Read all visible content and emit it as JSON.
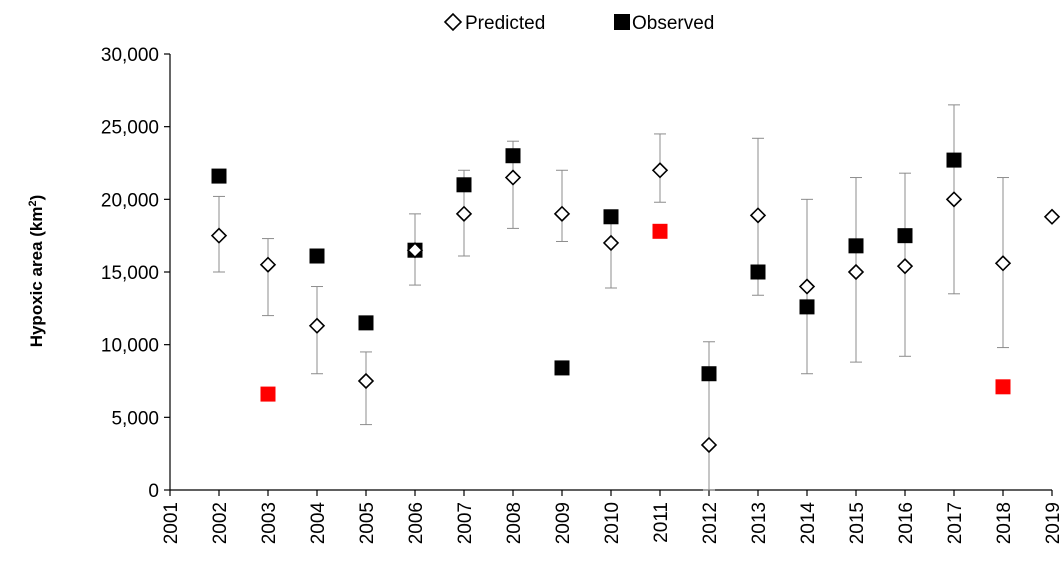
{
  "chart_data": {
    "type": "scatter",
    "title": "",
    "xlabel": "",
    "ylabel": "Hypoxic area (km",
    "ylabel_superscript": "2",
    "ylabel_suffix": ")",
    "ylim": [
      0,
      30000
    ],
    "y_ticks": [
      0,
      5000,
      10000,
      15000,
      20000,
      25000,
      30000
    ],
    "y_tick_labels": [
      "0",
      "5,000",
      "10,000",
      "15,000",
      "20,000",
      "25,000",
      "30,000"
    ],
    "xlim": [
      2001,
      2019
    ],
    "x_ticks": [
      2001,
      2002,
      2003,
      2004,
      2005,
      2006,
      2007,
      2008,
      2009,
      2010,
      2011,
      2012,
      2013,
      2014,
      2015,
      2016,
      2017,
      2018,
      2019
    ],
    "grid": false,
    "legend": {
      "placement": "top-center",
      "entries": [
        "Predicted",
        "Observed"
      ]
    },
    "colors": {
      "observed": "#000000",
      "observed_highlight": "#ff0000",
      "predicted_stroke": "#000000",
      "predicted_fill": "#ffffff",
      "error_bar": "#8c8c8c"
    },
    "series": [
      {
        "name": "Predicted",
        "marker": "diamond-open",
        "points": [
          {
            "x": 2002,
            "y": 17500,
            "low": 15000,
            "high": 20200
          },
          {
            "x": 2003,
            "y": 15500,
            "low": 12000,
            "high": 17300
          },
          {
            "x": 2004,
            "y": 11300,
            "low": 8000,
            "high": 14000
          },
          {
            "x": 2005,
            "y": 7500,
            "low": 4500,
            "high": 9500
          },
          {
            "x": 2006,
            "y": 16500,
            "low": 14100,
            "high": 19000
          },
          {
            "x": 2007,
            "y": 19000,
            "low": 16100,
            "high": 22000
          },
          {
            "x": 2008,
            "y": 21500,
            "low": 18000,
            "high": 24000
          },
          {
            "x": 2009,
            "y": 19000,
            "low": 17100,
            "high": 22000
          },
          {
            "x": 2010,
            "y": 17000,
            "low": 13900,
            "high": 18800
          },
          {
            "x": 2011,
            "y": 22000,
            "low": 19800,
            "high": 24500
          },
          {
            "x": 2012,
            "y": 3100,
            "low": 0,
            "high": 10200
          },
          {
            "x": 2013,
            "y": 18900,
            "low": 13400,
            "high": 24200
          },
          {
            "x": 2014,
            "y": 14000,
            "low": 8000,
            "high": 20000
          },
          {
            "x": 2015,
            "y": 15000,
            "low": 8800,
            "high": 21500
          },
          {
            "x": 2016,
            "y": 15400,
            "low": 9200,
            "high": 21800
          },
          {
            "x": 2017,
            "y": 20000,
            "low": 13500,
            "high": 26500
          },
          {
            "x": 2018,
            "y": 15600,
            "low": 9800,
            "high": 21500
          },
          {
            "x": 2019,
            "y": 18800
          }
        ]
      },
      {
        "name": "Observed",
        "marker": "square-filled",
        "points": [
          {
            "x": 2002,
            "y": 21600
          },
          {
            "x": 2003,
            "y": 6600,
            "highlight": true
          },
          {
            "x": 2004,
            "y": 16100
          },
          {
            "x": 2005,
            "y": 11500
          },
          {
            "x": 2006,
            "y": 16500
          },
          {
            "x": 2007,
            "y": 21000
          },
          {
            "x": 2008,
            "y": 23000
          },
          {
            "x": 2009,
            "y": 8400
          },
          {
            "x": 2010,
            "y": 18800
          },
          {
            "x": 2011,
            "y": 17800,
            "highlight": true
          },
          {
            "x": 2012,
            "y": 8000
          },
          {
            "x": 2013,
            "y": 15000
          },
          {
            "x": 2014,
            "y": 12600
          },
          {
            "x": 2015,
            "y": 16800
          },
          {
            "x": 2016,
            "y": 17500
          },
          {
            "x": 2017,
            "y": 22700
          },
          {
            "x": 2018,
            "y": 7100,
            "highlight": true
          }
        ]
      }
    ]
  }
}
